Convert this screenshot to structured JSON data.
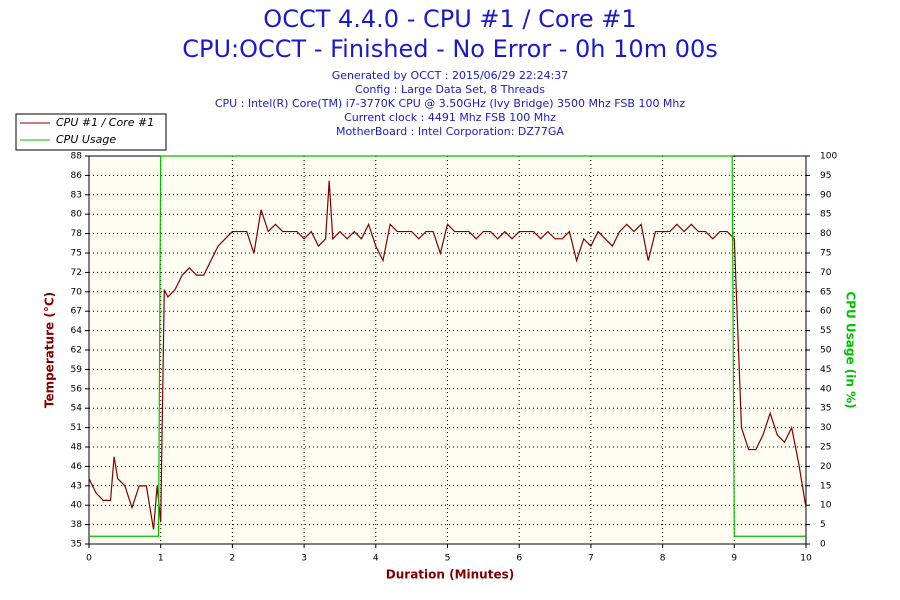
{
  "chart_data": {
    "type": "line",
    "title": "OCCT 4.4.0 - CPU #1 / Core #1",
    "subtitle": "CPU:OCCT - Finished - No Error - 0h 10m 00s",
    "info": [
      "Generated by OCCT : 2015/06/29 22:24:37",
      "Config : Large Data Set, 8 Threads",
      "CPU : Intel(R) Core(TM) i7-3770K CPU @ 3.50GHz (Ivy Bridge) 3500 Mhz FSB 100 Mhz",
      "Current clock : 4491 Mhz FSB 100 Mhz",
      "MotherBoard : Intel Corporation: DZ77GA"
    ],
    "xlabel": "Duration (Minutes)",
    "ylabel": "Temperature (°C)",
    "y2label": "CPU Usage (in %)",
    "xlim": [
      0,
      10
    ],
    "xticks": [
      0,
      1,
      2,
      3,
      4,
      5,
      6,
      7,
      8,
      9,
      10
    ],
    "ylim": [
      35,
      88.4
    ],
    "yticks": [
      35,
      {
        "value": 37.67,
        "label": "38"
      },
      {
        "value": 40.34,
        "label": "40"
      },
      {
        "value": 43.01,
        "label": "43"
      },
      {
        "value": 45.68,
        "label": "46"
      },
      {
        "value": 48.35,
        "label": "48"
      },
      {
        "value": 51.02,
        "label": "51"
      },
      {
        "value": 53.69,
        "label": "54"
      },
      {
        "value": 56.36,
        "label": "56"
      },
      {
        "value": 59.03,
        "label": "59"
      },
      {
        "value": 61.7,
        "label": "62"
      },
      {
        "value": 64.37,
        "label": "64"
      },
      {
        "value": 67.04,
        "label": "67"
      },
      {
        "value": 69.71,
        "label": "70"
      },
      {
        "value": 72.38,
        "label": "72"
      },
      {
        "value": 75.05,
        "label": "75"
      },
      {
        "value": 77.72,
        "label": "78"
      },
      {
        "value": 80.39,
        "label": "80"
      },
      {
        "value": 83.06,
        "label": "83"
      },
      {
        "value": 85.73,
        "label": "86"
      },
      {
        "value": 88.4,
        "label": "88"
      }
    ],
    "y2lim": [
      0,
      100
    ],
    "y2ticks": [
      0,
      5,
      10,
      15,
      20,
      25,
      30,
      35,
      40,
      45,
      50,
      55,
      60,
      65,
      70,
      75,
      80,
      85,
      90,
      95,
      100
    ],
    "grid": true,
    "series": [
      {
        "name": "CPU #1 / Core #1",
        "color": "#800000",
        "x": [
          0,
          0.1,
          0.2,
          0.3,
          0.35,
          0.4,
          0.5,
          0.6,
          0.7,
          0.8,
          0.9,
          0.95,
          1.0,
          1.05,
          1.1,
          1.2,
          1.3,
          1.4,
          1.5,
          1.6,
          1.7,
          1.8,
          1.9,
          2.0,
          2.1,
          2.2,
          2.3,
          2.4,
          2.5,
          2.6,
          2.7,
          2.8,
          2.9,
          3.0,
          3.1,
          3.2,
          3.3,
          3.35,
          3.4,
          3.5,
          3.6,
          3.7,
          3.8,
          3.9,
          4.0,
          4.1,
          4.2,
          4.3,
          4.4,
          4.5,
          4.6,
          4.7,
          4.8,
          4.9,
          5.0,
          5.1,
          5.2,
          5.3,
          5.4,
          5.5,
          5.6,
          5.7,
          5.8,
          5.9,
          6.0,
          6.1,
          6.2,
          6.3,
          6.4,
          6.5,
          6.6,
          6.7,
          6.8,
          6.9,
          7.0,
          7.1,
          7.2,
          7.3,
          7.4,
          7.5,
          7.6,
          7.7,
          7.8,
          7.9,
          8.0,
          8.1,
          8.2,
          8.3,
          8.4,
          8.5,
          8.6,
          8.7,
          8.8,
          8.9,
          9.0,
          9.1,
          9.2,
          9.3,
          9.4,
          9.5,
          9.6,
          9.7,
          9.8,
          9.9,
          10.0
        ],
        "values": [
          44,
          42,
          41,
          41,
          47,
          44,
          43,
          40,
          43,
          43,
          37,
          43,
          38,
          70,
          69,
          70,
          72,
          73,
          72,
          72,
          74,
          76,
          77,
          78,
          78,
          78,
          75,
          81,
          78,
          79,
          78,
          78,
          78,
          77,
          78,
          76,
          77,
          85,
          77,
          78,
          77,
          78,
          77,
          79,
          76,
          74,
          79,
          78,
          78,
          78,
          77,
          78,
          78,
          75,
          79,
          78,
          78,
          78,
          77,
          78,
          78,
          77,
          78,
          77,
          78,
          78,
          78,
          77,
          78,
          77,
          77,
          78,
          74,
          77,
          76,
          78,
          77,
          76,
          78,
          79,
          78,
          79,
          74,
          78,
          78,
          78,
          79,
          78,
          79,
          78,
          78,
          77,
          78,
          78,
          77,
          51,
          48,
          48,
          50,
          53,
          50,
          49,
          51,
          46,
          40
        ]
      },
      {
        "name": "CPU Usage",
        "color": "#00c000",
        "axis": "y2",
        "x": [
          0,
          0.97,
          1.0,
          8.97,
          9.0,
          10
        ],
        "values": [
          2,
          2,
          100,
          100,
          2,
          2
        ]
      }
    ]
  }
}
